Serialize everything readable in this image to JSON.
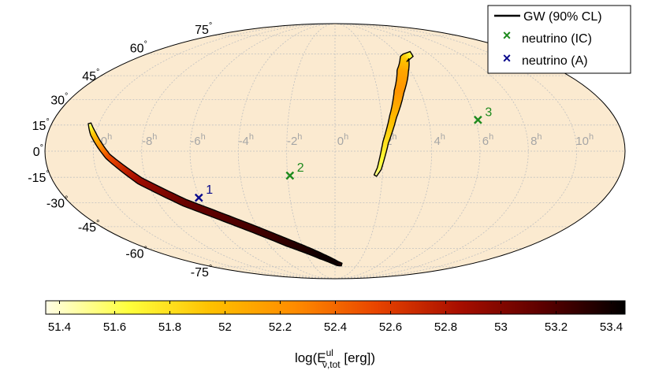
{
  "chart_data": {
    "type": "scatter",
    "projection": "mollweide",
    "title": "",
    "grid": true,
    "ra_tick_labels": [
      {
        "hours": 10,
        "label": "10",
        "sup": "h"
      },
      {
        "hours": 8,
        "label": "8",
        "sup": "h"
      },
      {
        "hours": 6,
        "label": "6",
        "sup": "h"
      },
      {
        "hours": 4,
        "label": "4",
        "sup": "h"
      },
      {
        "hours": 2,
        "label": "2",
        "sup": "h"
      },
      {
        "hours": 0,
        "label": "0",
        "sup": "h"
      },
      {
        "hours": -2,
        "label": "-2",
        "sup": "h"
      },
      {
        "hours": -4,
        "label": "-4",
        "sup": "h"
      },
      {
        "hours": -6,
        "label": "-6",
        "sup": "h"
      },
      {
        "hours": -8,
        "label": "-8",
        "sup": "h"
      },
      {
        "hours": -10,
        "label": "-10",
        "sup": "h"
      }
    ],
    "dec_tick_labels": [
      {
        "deg": 75,
        "label": "75",
        "sup": "°"
      },
      {
        "deg": 60,
        "label": "60",
        "sup": "°"
      },
      {
        "deg": 45,
        "label": "45",
        "sup": "°"
      },
      {
        "deg": 30,
        "label": "30",
        "sup": "°"
      },
      {
        "deg": 15,
        "label": "15",
        "sup": "°"
      },
      {
        "deg": 0,
        "label": "0",
        "sup": "°"
      },
      {
        "deg": -15,
        "label": "-15",
        "sup": "°"
      },
      {
        "deg": -30,
        "label": "-30",
        "sup": "°"
      },
      {
        "deg": -45,
        "label": "-45",
        "sup": "°"
      },
      {
        "deg": -60,
        "label": "-60",
        "sup": "°"
      },
      {
        "deg": -75,
        "label": "-75",
        "sup": "°"
      }
    ],
    "gw_regions": [
      {
        "name": "north-arc",
        "centerline": [
          [
            4.9,
            60
          ],
          [
            4.2,
            57
          ],
          [
            3.6,
            48
          ],
          [
            3.0,
            35
          ],
          [
            2.5,
            20
          ],
          [
            2.1,
            5
          ],
          [
            1.85,
            -10
          ],
          [
            1.7,
            -14
          ]
        ],
        "width_deg": [
          4,
          6,
          8,
          7,
          5,
          4,
          3,
          2
        ],
        "log_energy": [
          51.6,
          51.9,
          52.1,
          52.2,
          52.0,
          51.8,
          51.6,
          51.5
        ]
      },
      {
        "name": "south-arc",
        "centerline": [
          [
            -10.4,
            16
          ],
          [
            -10.1,
            10
          ],
          [
            -9.4,
            -3
          ],
          [
            -8.3,
            -17
          ],
          [
            -6.8,
            -30
          ],
          [
            -4.8,
            -43
          ],
          [
            -2.8,
            -56
          ],
          [
            -1.0,
            -66
          ],
          [
            0.2,
            -72
          ],
          [
            0.6,
            -73
          ]
        ],
        "width_deg": [
          2,
          4,
          4,
          5,
          5,
          5,
          5,
          4,
          3,
          2
        ],
        "log_energy": [
          51.5,
          51.9,
          52.5,
          52.9,
          53.1,
          53.2,
          53.3,
          53.4,
          53.4,
          53.3
        ]
      }
    ],
    "neutrinos": [
      {
        "id": "1",
        "label": "1",
        "detector": "A",
        "ra_hours": -6.05,
        "dec": -27,
        "color": "#0a0a8c"
      },
      {
        "id": "2",
        "label": "2",
        "detector": "IC",
        "ra_hours": -1.9,
        "dec": -14,
        "color": "#1e8a1e"
      },
      {
        "id": "3",
        "label": "3",
        "detector": "IC",
        "ra_hours": 6.1,
        "dec": 18,
        "color": "#1e8a1e"
      }
    ],
    "legend": {
      "position": "top-right",
      "entries": [
        {
          "label": "GW (90% CL)",
          "marker": "line",
          "color": "#000000"
        },
        {
          "label": "neutrino (IC)",
          "marker": "x",
          "color": "#1e8a1e"
        },
        {
          "label": "neutrino (A)",
          "marker": "x",
          "color": "#0a0a8c"
        }
      ]
    },
    "colorbar": {
      "min": 51.35,
      "max": 53.45,
      "ticks": [
        "51.4",
        "51.6",
        "51.8",
        "52",
        "52.2",
        "52.4",
        "52.6",
        "52.8",
        "53",
        "53.2",
        "53.4"
      ],
      "label_prefix": "log(E",
      "label_sup": "ul",
      "label_sub": "ν,tot",
      "label_suffix": " [erg])",
      "colormap": [
        "#fffde6",
        "#ffff3c",
        "#ffc000",
        "#ff8c00",
        "#e84400",
        "#a80e00",
        "#5c0000",
        "#000000"
      ]
    },
    "colors": {
      "sky_fill": "#fbead0",
      "grid": "#c0c0c0",
      "ra_label": "#a6a6a6",
      "outline": "#000000"
    }
  }
}
